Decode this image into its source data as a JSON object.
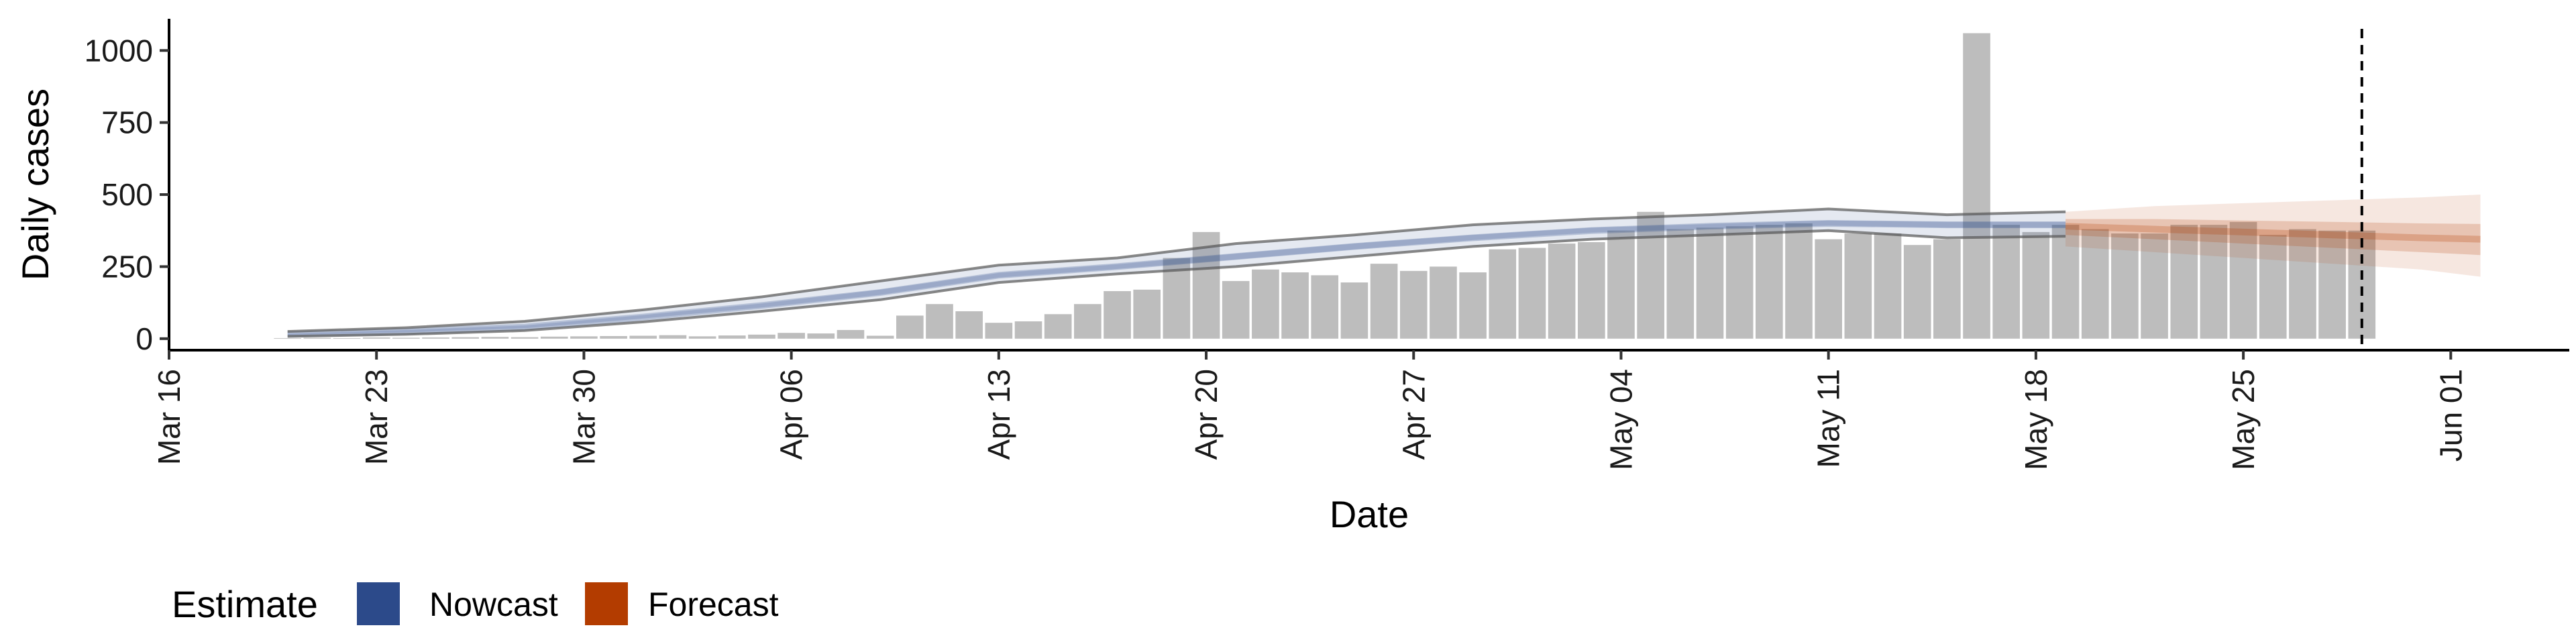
{
  "chart_data": {
    "type": "bar",
    "title": "",
    "xlabel": "Date",
    "ylabel": "Daily cases",
    "x_start": "2020-03-16",
    "x_end": "2020-06-05",
    "ylim": [
      -40,
      1110
    ],
    "x_ticks": [
      "Mar 16",
      "Mar 23",
      "Mar 30",
      "Apr 06",
      "Apr 13",
      "Apr 20",
      "Apr 27",
      "May 04",
      "May 11",
      "May 18",
      "May 25",
      "Jun 01"
    ],
    "y_ticks": [
      0,
      250,
      500,
      750,
      1000
    ],
    "grid": false,
    "reference_line": {
      "date": "2020-05-29",
      "style": "dashed"
    },
    "series": [
      {
        "type": "bar",
        "color": "#bdbdbd",
        "dates": [
          "2020-03-20",
          "2020-03-21",
          "2020-03-22",
          "2020-03-23",
          "2020-03-24",
          "2020-03-25",
          "2020-03-26",
          "2020-03-27",
          "2020-03-28",
          "2020-03-29",
          "2020-03-30",
          "2020-03-31",
          "2020-04-01",
          "2020-04-02",
          "2020-04-03",
          "2020-04-04",
          "2020-04-05",
          "2020-04-06",
          "2020-04-07",
          "2020-04-08",
          "2020-04-09",
          "2020-04-10",
          "2020-04-11",
          "2020-04-12",
          "2020-04-13",
          "2020-04-14",
          "2020-04-15",
          "2020-04-16",
          "2020-04-17",
          "2020-04-18",
          "2020-04-19",
          "2020-04-20",
          "2020-04-21",
          "2020-04-22",
          "2020-04-23",
          "2020-04-24",
          "2020-04-25",
          "2020-04-26",
          "2020-04-27",
          "2020-04-28",
          "2020-04-29",
          "2020-04-30",
          "2020-05-01",
          "2020-05-02",
          "2020-05-03",
          "2020-05-04",
          "2020-05-05",
          "2020-05-06",
          "2020-05-07",
          "2020-05-08",
          "2020-05-09",
          "2020-05-10",
          "2020-05-11",
          "2020-05-12",
          "2020-05-13",
          "2020-05-14",
          "2020-05-15",
          "2020-05-16",
          "2020-05-17",
          "2020-05-18",
          "2020-05-19",
          "2020-05-20",
          "2020-05-21",
          "2020-05-22",
          "2020-05-23",
          "2020-05-24",
          "2020-05-25",
          "2020-05-26",
          "2020-05-27",
          "2020-05-28",
          "2020-05-29"
        ],
        "values": [
          2,
          3,
          2,
          4,
          3,
          4,
          5,
          6,
          5,
          7,
          8,
          9,
          10,
          12,
          8,
          11,
          14,
          20,
          18,
          30,
          10,
          80,
          120,
          95,
          55,
          60,
          85,
          120,
          165,
          170,
          280,
          370,
          200,
          240,
          230,
          220,
          195,
          260,
          235,
          250,
          230,
          310,
          315,
          330,
          335,
          375,
          440,
          380,
          385,
          390,
          395,
          400,
          345,
          365,
          365,
          325,
          345,
          1060,
          395,
          370,
          395,
          380,
          365,
          365,
          395,
          395,
          405,
          360,
          380,
          375,
          375
        ]
      },
      {
        "name": "Nowcast",
        "type": "ribbon",
        "color": "#2c4a8a",
        "dates": [
          "2020-03-20",
          "2020-03-24",
          "2020-03-28",
          "2020-04-01",
          "2020-04-05",
          "2020-04-09",
          "2020-04-13",
          "2020-04-17",
          "2020-04-21",
          "2020-04-25",
          "2020-04-29",
          "2020-05-03",
          "2020-05-07",
          "2020-05-11",
          "2020-05-15",
          "2020-05-19"
        ],
        "median": [
          15,
          25,
          40,
          75,
          115,
          160,
          220,
          250,
          285,
          320,
          350,
          375,
          390,
          400,
          395,
          395
        ],
        "lower_90": [
          8,
          15,
          28,
          58,
          95,
          135,
          195,
          225,
          250,
          285,
          320,
          345,
          360,
          375,
          350,
          355
        ],
        "upper_90": [
          25,
          38,
          60,
          100,
          145,
          200,
          255,
          280,
          330,
          360,
          395,
          415,
          430,
          450,
          430,
          440
        ],
        "lower_50": [
          12,
          22,
          36,
          70,
          108,
          152,
          212,
          242,
          275,
          310,
          342,
          368,
          382,
          392,
          385,
          385
        ],
        "upper_50": [
          18,
          30,
          46,
          82,
          122,
          170,
          228,
          258,
          295,
          330,
          360,
          385,
          398,
          410,
          405,
          405
        ]
      },
      {
        "name": "Forecast",
        "type": "ribbon",
        "color": "#b33c00",
        "dates": [
          "2020-05-19",
          "2020-05-22",
          "2020-05-25",
          "2020-05-28",
          "2020-05-31",
          "2020-06-02"
        ],
        "median": [
          390,
          380,
          370,
          360,
          350,
          345
        ],
        "lower_90": [
          320,
          300,
          280,
          260,
          240,
          215
        ],
        "upper_90": [
          440,
          460,
          470,
          480,
          490,
          500
        ],
        "lower_50": [
          360,
          345,
          330,
          315,
          300,
          290
        ],
        "upper_50": [
          415,
          415,
          410,
          405,
          400,
          398
        ]
      }
    ],
    "legend": {
      "title": "Estimate",
      "placement": "bottom-left",
      "entries": [
        {
          "label": "Nowcast",
          "color": "#2c4a8a"
        },
        {
          "label": "Forecast",
          "color": "#b33c00"
        }
      ]
    }
  }
}
